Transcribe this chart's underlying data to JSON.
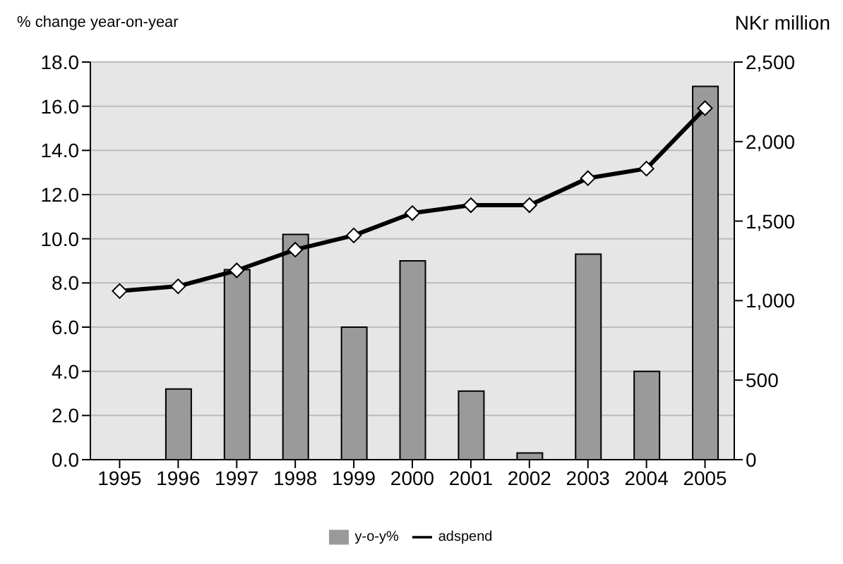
{
  "chart_data": {
    "type": "bar",
    "ylabel": "% change year-on-year",
    "y2label": "NKr million",
    "categories": [
      "1995",
      "1996",
      "1997",
      "1998",
      "1999",
      "2000",
      "2001",
      "2002",
      "2003",
      "2004",
      "2005"
    ],
    "series": [
      {
        "name": "y-o-y%",
        "color": "#9a9a9a",
        "values": [
          null,
          3.2,
          8.6,
          10.2,
          6.0,
          9.0,
          3.1,
          0.3,
          9.3,
          4.0,
          16.9
        ]
      },
      {
        "name": "adspend",
        "type": "line",
        "axis": "y2",
        "color": "#000000",
        "marker": "diamond",
        "values": [
          1060,
          1090,
          1190,
          1320,
          1410,
          1550,
          1600,
          1600,
          1770,
          1830,
          2210
        ]
      }
    ],
    "ylim": [
      0,
      18
    ],
    "yticks": [
      {
        "value": 0,
        "label": "0.0"
      },
      {
        "value": 2,
        "label": "2.0"
      },
      {
        "value": 4,
        "label": "4.0"
      },
      {
        "value": 6,
        "label": "6.0"
      },
      {
        "value": 8,
        "label": "8.0"
      },
      {
        "value": 10,
        "label": "10.0"
      },
      {
        "value": 12,
        "label": "12.0"
      },
      {
        "value": 14,
        "label": "14.0"
      },
      {
        "value": 16,
        "label": "16.0"
      },
      {
        "value": 18,
        "label": "18.0"
      }
    ],
    "y2lim": [
      0,
      2500
    ],
    "y2ticks": [
      0,
      500,
      {
        "value": 1000,
        "label": "1,000"
      },
      {
        "value": 1500,
        "label": "1,500"
      },
      {
        "value": 2000,
        "label": "2,000"
      },
      {
        "value": 2500,
        "label": "2,500"
      }
    ],
    "grid": "y",
    "legend": "bottom"
  }
}
